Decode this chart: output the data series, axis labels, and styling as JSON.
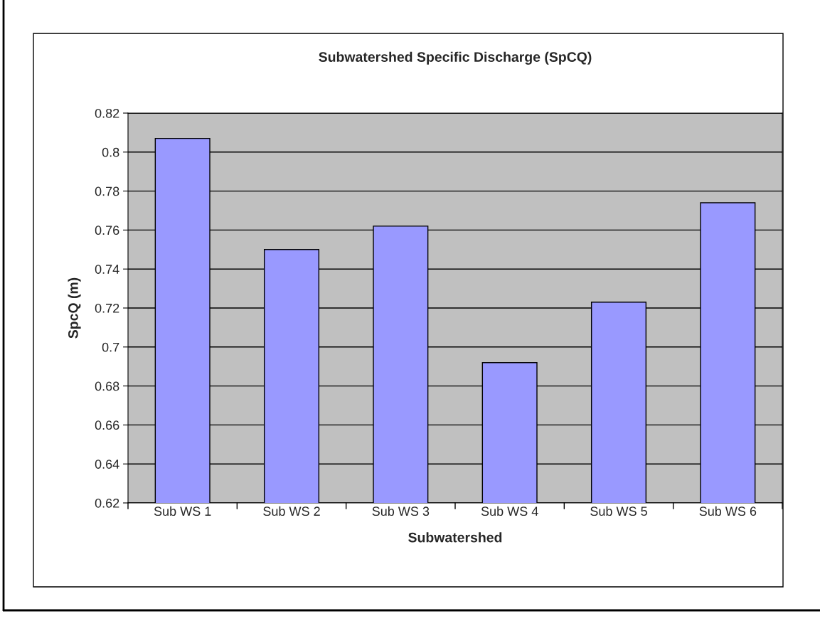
{
  "chart_data": {
    "type": "bar",
    "title": "Subwatershed Specific Discharge (SpCQ)",
    "xlabel": "Subwatershed",
    "ylabel": "SpcQ (m)",
    "categories": [
      "Sub WS 1",
      "Sub WS 2",
      "Sub WS 3",
      "Sub WS 4",
      "Sub WS 5",
      "Sub WS 6"
    ],
    "values": [
      0.807,
      0.75,
      0.762,
      0.692,
      0.723,
      0.774
    ],
    "color": "#9999ff",
    "ylim": [
      0.62,
      0.82
    ],
    "yticks": [
      0.62,
      0.64,
      0.66,
      0.68,
      0.7,
      0.72,
      0.74,
      0.76,
      0.78,
      0.8,
      0.82
    ],
    "grid": "y"
  }
}
